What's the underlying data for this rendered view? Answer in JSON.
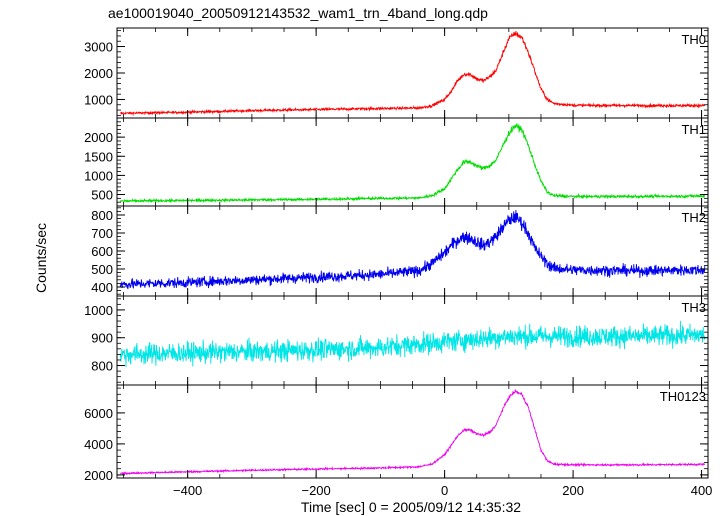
{
  "chart_data": {
    "type": "line",
    "title": "ae100019040_20050912143532_wam1_trn_4band_long.qdp",
    "xlabel": "Time [sec] 0 = 2005/09/12 14:35:32",
    "ylabel": "Counts/sec",
    "xlim": [
      -510,
      410
    ],
    "x_ticks": [
      -400,
      -200,
      0,
      200,
      400
    ],
    "grid": false,
    "legend": "none",
    "panels": [
      {
        "label": "TH0",
        "color": "#ff0000",
        "ylim": [
          300,
          3700
        ],
        "y_ticks": [
          1000,
          2000,
          3000
        ],
        "noise": 40,
        "x": [
          -500,
          -400,
          -300,
          -200,
          -100,
          -40,
          -20,
          0,
          10,
          20,
          30,
          40,
          50,
          60,
          70,
          80,
          90,
          100,
          110,
          120,
          130,
          140,
          150,
          160,
          170,
          200,
          300,
          400
        ],
        "values": [
          480,
          520,
          580,
          620,
          660,
          680,
          760,
          1000,
          1300,
          1700,
          1950,
          1950,
          1780,
          1700,
          1850,
          2100,
          2700,
          3300,
          3500,
          3350,
          2800,
          2100,
          1400,
          1000,
          850,
          780,
          770,
          770
        ]
      },
      {
        "label": "TH1",
        "color": "#00dd00",
        "ylim": [
          200,
          2500
        ],
        "y_ticks": [
          500,
          1000,
          1500,
          2000
        ],
        "noise": 30,
        "x": [
          -500,
          -400,
          -300,
          -200,
          -100,
          -40,
          -20,
          0,
          10,
          20,
          30,
          40,
          50,
          60,
          70,
          80,
          90,
          100,
          110,
          120,
          130,
          140,
          150,
          160,
          170,
          200,
          300,
          400
        ],
        "values": [
          330,
          345,
          360,
          375,
          400,
          410,
          470,
          650,
          900,
          1150,
          1350,
          1350,
          1250,
          1180,
          1250,
          1400,
          1750,
          2100,
          2300,
          2200,
          1800,
          1300,
          850,
          560,
          470,
          450,
          450,
          460
        ]
      },
      {
        "label": "TH2",
        "color": "#0000ee",
        "ylim": [
          350,
          850
        ],
        "y_ticks": [
          400,
          500,
          600,
          700,
          800
        ],
        "noise": 28,
        "x": [
          -500,
          -400,
          -300,
          -200,
          -100,
          -40,
          -20,
          0,
          10,
          20,
          30,
          40,
          50,
          60,
          70,
          80,
          90,
          100,
          110,
          120,
          130,
          140,
          150,
          160,
          170,
          200,
          300,
          400
        ],
        "values": [
          415,
          425,
          440,
          455,
          470,
          490,
          530,
          590,
          630,
          660,
          680,
          670,
          650,
          630,
          650,
          680,
          730,
          770,
          790,
          760,
          700,
          620,
          570,
          530,
          505,
          495,
          490,
          495
        ]
      },
      {
        "label": "TH3",
        "color": "#00e5e5",
        "ylim": [
          730,
          1050
        ],
        "y_ticks": [
          800,
          900,
          1000
        ],
        "noise": 38,
        "x": [
          -500,
          -400,
          -300,
          -200,
          -100,
          0,
          100,
          200,
          300,
          400
        ],
        "values": [
          840,
          845,
          850,
          856,
          865,
          885,
          905,
          905,
          905,
          910
        ]
      },
      {
        "label": "TH0123",
        "color": "#ee00ee",
        "ylim": [
          1800,
          7800
        ],
        "y_ticks": [
          2000,
          4000,
          6000
        ],
        "noise": 50,
        "x": [
          -500,
          -400,
          -300,
          -200,
          -100,
          -40,
          -20,
          0,
          10,
          20,
          30,
          40,
          50,
          60,
          70,
          80,
          90,
          100,
          110,
          120,
          130,
          140,
          150,
          160,
          170,
          200,
          300,
          400
        ],
        "values": [
          2100,
          2200,
          2300,
          2380,
          2450,
          2520,
          2700,
          3300,
          3900,
          4500,
          4900,
          4900,
          4650,
          4550,
          4750,
          5200,
          6200,
          7000,
          7400,
          7200,
          6400,
          5000,
          3600,
          2900,
          2700,
          2650,
          2650,
          2680
        ]
      }
    ]
  }
}
